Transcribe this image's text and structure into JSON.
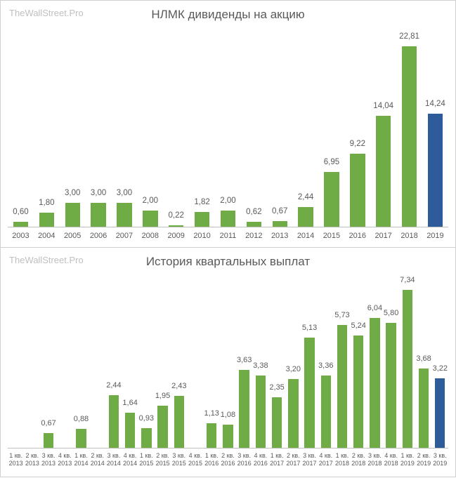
{
  "watermark": "TheWallStreet.Pro",
  "colors": {
    "green": "#6fac46",
    "blue": "#2e5b9a",
    "bg": "#ffffff",
    "text": "#595959",
    "watermark": "#bfbfbf",
    "axis": "#bfbfbf",
    "border": "#d0d0d0"
  },
  "chart1": {
    "type": "bar",
    "title": "НЛМК дивиденды на акцию",
    "title_fontsize": 17,
    "label_fontsize": 11.5,
    "ylim": [
      0,
      25
    ],
    "bar_width": 0.58,
    "background_color": "#ffffff",
    "categories": [
      "2003",
      "2004",
      "2005",
      "2006",
      "2007",
      "2008",
      "2009",
      "2010",
      "2011",
      "2012",
      "2013",
      "2014",
      "2015",
      "2016",
      "2017",
      "2018",
      "2019"
    ],
    "values": [
      0.6,
      1.8,
      3.0,
      3.0,
      3.0,
      2.0,
      0.22,
      1.82,
      2.0,
      0.62,
      0.67,
      2.44,
      6.95,
      9.22,
      14.04,
      22.81,
      14.24
    ],
    "value_labels": [
      "0,60",
      "1,80",
      "3,00",
      "3,00",
      "3,00",
      "2,00",
      "0,22",
      "1,82",
      "2,00",
      "0,62",
      "0,67",
      "2,44",
      "6,95",
      "9,22",
      "14,04",
      "22,81",
      "14,24"
    ],
    "bar_colors": [
      "#6fac46",
      "#6fac46",
      "#6fac46",
      "#6fac46",
      "#6fac46",
      "#6fac46",
      "#6fac46",
      "#6fac46",
      "#6fac46",
      "#6fac46",
      "#6fac46",
      "#6fac46",
      "#6fac46",
      "#6fac46",
      "#6fac46",
      "#6fac46",
      "#2e5b9a"
    ]
  },
  "chart2": {
    "type": "bar",
    "title": "История квартальных выплат",
    "title_fontsize": 17,
    "label_fontsize": 11,
    "ylim": [
      0,
      8
    ],
    "bar_width": 0.62,
    "background_color": "#ffffff",
    "categories_q": [
      "1 кв.",
      "2 кв.",
      "3 кв.",
      "4 кв.",
      "1 кв.",
      "2 кв.",
      "3 кв.",
      "4 кв.",
      "1 кв.",
      "2 кв.",
      "3 кв.",
      "4 кв.",
      "1 кв.",
      "2 кв.",
      "3 кв.",
      "4 кв.",
      "1 кв.",
      "2 кв.",
      "3 кв.",
      "4 кв.",
      "1 кв.",
      "2 кв.",
      "3 кв.",
      "4 кв.",
      "1 кв.",
      "2 кв.",
      "3 кв."
    ],
    "categories_y": [
      "2013",
      "2013",
      "2013",
      "2013",
      "2014",
      "2014",
      "2014",
      "2014",
      "2015",
      "2015",
      "2015",
      "2015",
      "2016",
      "2016",
      "2016",
      "2016",
      "2017",
      "2017",
      "2017",
      "2017",
      "2018",
      "2018",
      "2018",
      "2018",
      "2019",
      "2019",
      "2019"
    ],
    "values": [
      null,
      null,
      0.67,
      null,
      0.88,
      null,
      2.44,
      1.64,
      0.93,
      1.95,
      2.43,
      null,
      1.13,
      1.08,
      3.63,
      3.38,
      2.35,
      3.2,
      5.13,
      3.36,
      5.73,
      5.24,
      6.04,
      5.8,
      7.34,
      3.68,
      3.22
    ],
    "value_labels": [
      "",
      "",
      "0,67",
      "",
      "0,88",
      "",
      "2,44",
      "1,64",
      "0,93",
      "1,95",
      "2,43",
      "",
      "1,13",
      "1,08",
      "3,63",
      "3,38",
      "2,35",
      "3,20",
      "5,13",
      "3,36",
      "5,73",
      "5,24",
      "6,04",
      "5,80",
      "7,34",
      "3,68",
      "3,22"
    ],
    "bar_colors": [
      "#6fac46",
      "#6fac46",
      "#6fac46",
      "#6fac46",
      "#6fac46",
      "#6fac46",
      "#6fac46",
      "#6fac46",
      "#6fac46",
      "#6fac46",
      "#6fac46",
      "#6fac46",
      "#6fac46",
      "#6fac46",
      "#6fac46",
      "#6fac46",
      "#6fac46",
      "#6fac46",
      "#6fac46",
      "#6fac46",
      "#6fac46",
      "#6fac46",
      "#6fac46",
      "#6fac46",
      "#6fac46",
      "#6fac46",
      "#2e5b9a"
    ]
  }
}
